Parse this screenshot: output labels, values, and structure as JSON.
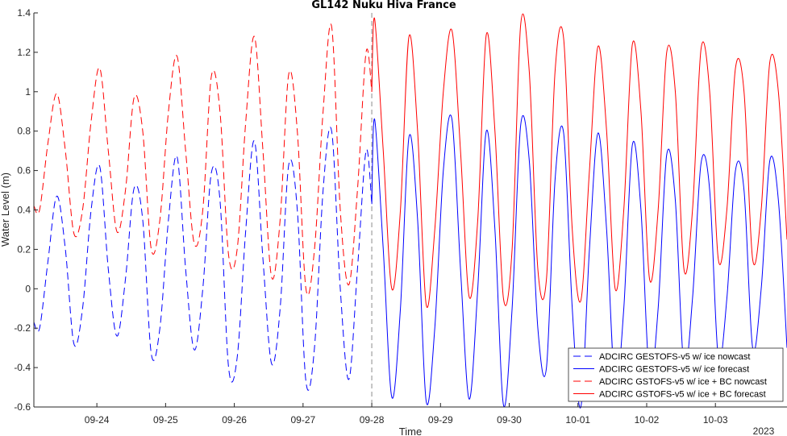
{
  "chart_data": {
    "type": "line",
    "title": "GL142 Nuku Hiva France",
    "xlabel": "Time",
    "ylabel": "Water Level (m)",
    "year_label": "2023",
    "x_ticks": [
      "09-24",
      "09-25",
      "09-26",
      "09-27",
      "09-28",
      "09-29",
      "09-30",
      "10-01",
      "10-02",
      "10-03"
    ],
    "y_ticks": [
      "-0.6",
      "-0.4",
      "-0.2",
      "0",
      "0.2",
      "0.4",
      "0.6",
      "0.8",
      "1",
      "1.2",
      "1.4"
    ],
    "xlim": [
      "2023-09-23T02:00",
      "2023-10-04T01:00"
    ],
    "ylim": [
      -0.6,
      1.4
    ],
    "forecast_start": "2023-09-28T00:00",
    "legend_position": "bottom-right",
    "grid": false,
    "series": [
      {
        "name": "ADCIRC GESTOFS-v5 w/ ice nowcast",
        "color": "#0000ff",
        "dash": "dashed",
        "x": [
          "2023-09-23T02:00",
          "2023-09-23T04:00",
          "2023-09-23T07:00",
          "2023-09-23T10:00",
          "2023-09-23T13:00",
          "2023-09-23T16:00",
          "2023-09-23T19:00",
          "2023-09-23T22:00",
          "2023-09-24T01:00",
          "2023-09-24T04:00",
          "2023-09-24T07:00",
          "2023-09-24T10:00",
          "2023-09-24T13:00",
          "2023-09-24T16:00",
          "2023-09-24T19:00",
          "2023-09-24T22:00",
          "2023-09-25T01:00",
          "2023-09-25T04:00",
          "2023-09-25T07:00",
          "2023-09-25T10:00",
          "2023-09-25T13:00",
          "2023-09-25T16:00",
          "2023-09-25T19:00",
          "2023-09-25T22:00",
          "2023-09-26T01:00",
          "2023-09-26T04:00",
          "2023-09-26T07:00",
          "2023-09-26T10:00",
          "2023-09-26T13:00",
          "2023-09-26T16:00",
          "2023-09-26T19:00",
          "2023-09-26T22:00",
          "2023-09-27T01:00",
          "2023-09-27T04:00",
          "2023-09-27T07:00",
          "2023-09-27T10:00",
          "2023-09-27T13:00",
          "2023-09-27T16:00",
          "2023-09-27T19:00",
          "2023-09-27T22:00",
          "2023-09-28T00:00"
        ],
        "y": [
          -0.17,
          -0.2,
          0.15,
          0.47,
          0.2,
          -0.28,
          -0.1,
          0.4,
          0.62,
          0.1,
          -0.24,
          0.05,
          0.51,
          0.35,
          -0.33,
          -0.2,
          0.35,
          0.67,
          0.1,
          -0.31,
          0.0,
          0.59,
          0.45,
          -0.4,
          -0.35,
          0.3,
          0.75,
          0.15,
          -0.38,
          -0.1,
          0.63,
          0.4,
          -0.47,
          -0.3,
          0.5,
          0.8,
          0.0,
          -0.46,
          0.1,
          0.7,
          0.43
        ]
      },
      {
        "name": "ADCIRC GESTOFS-v5 w/ ice forecast",
        "color": "#0000ff",
        "dash": "solid",
        "x": [
          "2023-09-28T00:00",
          "2023-09-28T01:00",
          "2023-09-28T04:00",
          "2023-09-28T07:00",
          "2023-09-28T10:00",
          "2023-09-28T13:00",
          "2023-09-28T16:00",
          "2023-09-28T19:00",
          "2023-09-28T22:00",
          "2023-09-29T01:00",
          "2023-09-29T04:00",
          "2023-09-29T07:00",
          "2023-09-29T10:00",
          "2023-09-29T13:00",
          "2023-09-29T16:00",
          "2023-09-29T19:00",
          "2023-09-29T22:00",
          "2023-09-30T01:00",
          "2023-09-30T04:00",
          "2023-09-30T07:00",
          "2023-09-30T10:00",
          "2023-09-30T13:00",
          "2023-09-30T16:00",
          "2023-09-30T19:00",
          "2023-09-30T22:00",
          "2023-10-01T01:00",
          "2023-10-01T04:00",
          "2023-10-01T07:00",
          "2023-10-01T10:00",
          "2023-10-01T13:00",
          "2023-10-01T16:00",
          "2023-10-01T19:00",
          "2023-10-01T22:00",
          "2023-10-02T01:00",
          "2023-10-02T04:00",
          "2023-10-02T07:00",
          "2023-10-02T10:00",
          "2023-10-02T13:00",
          "2023-10-02T16:00",
          "2023-10-02T19:00",
          "2023-10-02T22:00",
          "2023-10-03T01:00",
          "2023-10-03T04:00",
          "2023-10-03T07:00",
          "2023-10-03T10:00",
          "2023-10-03T13:00",
          "2023-10-03T16:00",
          "2023-10-03T19:00",
          "2023-10-03T22:00",
          "2023-10-04T01:00"
        ],
        "y": [
          0.43,
          0.86,
          0.2,
          -0.55,
          -0.1,
          0.77,
          0.35,
          -0.57,
          -0.2,
          0.6,
          0.86,
          0.1,
          -0.56,
          0.0,
          0.8,
          0.3,
          -0.59,
          -0.1,
          0.83,
          0.65,
          -0.2,
          -0.4,
          0.55,
          0.79,
          -0.1,
          -0.6,
          0.2,
          0.79,
          0.3,
          -0.5,
          -0.1,
          0.73,
          0.4,
          -0.45,
          -0.1,
          0.68,
          0.45,
          -0.4,
          -0.05,
          0.64,
          0.5,
          -0.35,
          -0.05,
          0.6,
          0.5,
          -0.3,
          0.0,
          0.65,
          0.45,
          -0.3
        ]
      },
      {
        "name": "ADCIRC GSTOFS-v5 w/ ice + BC nowcast",
        "color": "#ff0000",
        "dash": "dashed",
        "x": [
          "2023-09-23T02:00",
          "2023-09-23T04:00",
          "2023-09-23T07:00",
          "2023-09-23T10:00",
          "2023-09-23T13:00",
          "2023-09-23T16:00",
          "2023-09-23T19:00",
          "2023-09-23T22:00",
          "2023-09-24T01:00",
          "2023-09-24T04:00",
          "2023-09-24T07:00",
          "2023-09-24T10:00",
          "2023-09-24T13:00",
          "2023-09-24T16:00",
          "2023-09-24T19:00",
          "2023-09-24T22:00",
          "2023-09-25T01:00",
          "2023-09-25T04:00",
          "2023-09-25T07:00",
          "2023-09-25T10:00",
          "2023-09-25T13:00",
          "2023-09-25T16:00",
          "2023-09-25T19:00",
          "2023-09-25T22:00",
          "2023-09-26T01:00",
          "2023-09-26T04:00",
          "2023-09-26T07:00",
          "2023-09-26T10:00",
          "2023-09-26T13:00",
          "2023-09-26T16:00",
          "2023-09-26T19:00",
          "2023-09-26T22:00",
          "2023-09-27T01:00",
          "2023-09-27T04:00",
          "2023-09-27T07:00",
          "2023-09-27T10:00",
          "2023-09-27T13:00",
          "2023-09-27T16:00",
          "2023-09-27T19:00",
          "2023-09-27T22:00",
          "2023-09-28T00:00"
        ],
        "y": [
          0.42,
          0.4,
          0.75,
          0.99,
          0.7,
          0.28,
          0.4,
          0.85,
          1.12,
          0.7,
          0.29,
          0.5,
          0.97,
          0.8,
          0.2,
          0.35,
          0.9,
          1.18,
          0.7,
          0.23,
          0.4,
          1.08,
          0.9,
          0.17,
          0.2,
          0.85,
          1.28,
          0.7,
          0.06,
          0.35,
          1.09,
          0.8,
          0.0,
          0.2,
          0.9,
          1.33,
          0.4,
          0.02,
          0.5,
          1.2,
          1.0
        ]
      },
      {
        "name": "ADCIRC GSTOFS-v5 w/ ice + BC forecast",
        "color": "#ff0000",
        "dash": "solid",
        "x": [
          "2023-09-28T00:00",
          "2023-09-28T01:00",
          "2023-09-28T04:00",
          "2023-09-28T07:00",
          "2023-09-28T10:00",
          "2023-09-28T13:00",
          "2023-09-28T16:00",
          "2023-09-28T19:00",
          "2023-09-28T22:00",
          "2023-09-29T01:00",
          "2023-09-29T04:00",
          "2023-09-29T07:00",
          "2023-09-29T10:00",
          "2023-09-29T13:00",
          "2023-09-29T16:00",
          "2023-09-29T19:00",
          "2023-09-29T22:00",
          "2023-09-30T01:00",
          "2023-09-30T04:00",
          "2023-09-30T07:00",
          "2023-09-30T10:00",
          "2023-09-30T13:00",
          "2023-09-30T16:00",
          "2023-09-30T19:00",
          "2023-09-30T22:00",
          "2023-10-01T01:00",
          "2023-10-01T04:00",
          "2023-10-01T07:00",
          "2023-10-01T10:00",
          "2023-10-01T13:00",
          "2023-10-01T16:00",
          "2023-10-01T19:00",
          "2023-10-01T22:00",
          "2023-10-02T01:00",
          "2023-10-02T04:00",
          "2023-10-02T07:00",
          "2023-10-02T10:00",
          "2023-10-02T13:00",
          "2023-10-02T16:00",
          "2023-10-02T19:00",
          "2023-10-02T22:00",
          "2023-10-03T01:00",
          "2023-10-03T04:00",
          "2023-10-03T07:00",
          "2023-10-03T10:00",
          "2023-10-03T13:00",
          "2023-10-03T16:00",
          "2023-10-03T19:00",
          "2023-10-03T22:00",
          "2023-10-04T01:00"
        ],
        "y": [
          1.0,
          1.37,
          0.7,
          0.0,
          0.4,
          1.28,
          0.8,
          -0.08,
          0.3,
          1.0,
          1.31,
          0.7,
          -0.04,
          0.35,
          1.29,
          0.8,
          -0.05,
          0.2,
          1.34,
          1.1,
          0.1,
          0.05,
          1.1,
          1.27,
          0.3,
          -0.06,
          0.6,
          1.23,
          0.8,
          0.0,
          0.4,
          1.24,
          0.9,
          0.05,
          0.4,
          1.2,
          1.0,
          0.1,
          0.4,
          1.22,
          1.0,
          0.15,
          0.4,
          1.12,
          1.0,
          0.15,
          0.4,
          1.15,
          1.0,
          0.25
        ]
      }
    ]
  }
}
